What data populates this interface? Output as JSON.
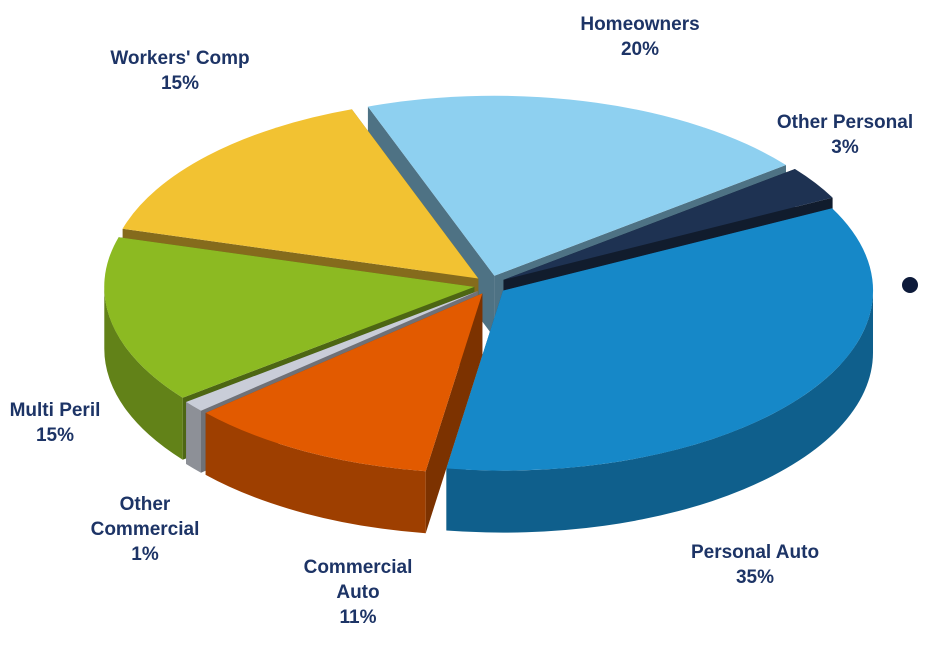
{
  "chart_data": {
    "type": "pie",
    "categories": [
      "Homeowners",
      "Other Personal",
      "Personal Auto",
      "Commercial Auto",
      "Other Commercial",
      "Multi Peril",
      "Workers' Comp"
    ],
    "values": [
      20,
      3,
      35,
      11,
      1,
      15,
      15
    ],
    "value_labels": [
      "20%",
      "3%",
      "35%",
      "11%",
      "1%",
      "15%",
      "15%"
    ],
    "colors": [
      "#8ed0f0",
      "#1e3252",
      "#1688c8",
      "#e25a00",
      "#c9cdd8",
      "#8cba22",
      "#f2c232"
    ]
  }
}
